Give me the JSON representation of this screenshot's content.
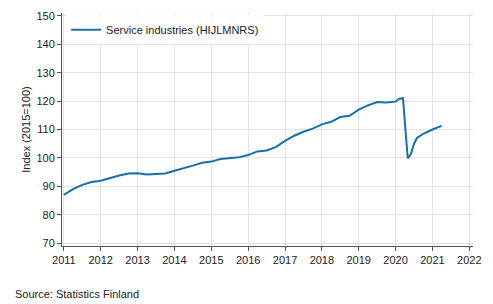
{
  "chart_data": {
    "type": "line",
    "y_label": "Index (2015=100)",
    "source": "Source: Statistics Finland",
    "x": [
      2011.0,
      2011.25,
      2011.5,
      2011.75,
      2012.0,
      2012.25,
      2012.5,
      2012.75,
      2013.0,
      2013.25,
      2013.5,
      2013.75,
      2014.0,
      2014.25,
      2014.5,
      2014.75,
      2015.0,
      2015.25,
      2015.5,
      2015.75,
      2016.0,
      2016.25,
      2016.5,
      2016.75,
      2017.0,
      2017.25,
      2017.5,
      2017.75,
      2018.0,
      2018.25,
      2018.5,
      2018.75,
      2019.0,
      2019.25,
      2019.5,
      2019.75,
      2020.0,
      2020.1,
      2020.2,
      2020.25,
      2020.33,
      2020.42,
      2020.5,
      2020.58,
      2020.75,
      2021.0,
      2021.25
    ],
    "series": [
      {
        "name": "Service industries (HIJLMNRS)",
        "color": "#1a6fa8",
        "values": [
          87,
          89,
          90.5,
          91.5,
          92,
          93,
          93.8,
          94.5,
          94.6,
          94.2,
          94.3,
          94.5,
          95.5,
          96.3,
          97.3,
          98.3,
          98.7,
          99.6,
          100,
          100.2,
          101,
          102.3,
          102.6,
          103.8,
          106,
          107.8,
          109.2,
          110.3,
          111.8,
          112.7,
          114.4,
          114.8,
          117,
          118.5,
          119.7,
          119.5,
          119.8,
          120.8,
          121,
          112,
          99.8,
          101.5,
          105,
          107,
          108.5,
          110,
          111.3
        ]
      }
    ],
    "xlim": [
      2010.95,
      2022.1
    ],
    "xticks": [
      2011,
      2012,
      2013,
      2014,
      2015,
      2016,
      2017,
      2018,
      2019,
      2020,
      2021,
      2022
    ],
    "ylim": [
      69,
      151
    ],
    "yticks": [
      70,
      80,
      90,
      100,
      110,
      120,
      130,
      140,
      150
    ],
    "grid": true,
    "legend": "top left"
  }
}
